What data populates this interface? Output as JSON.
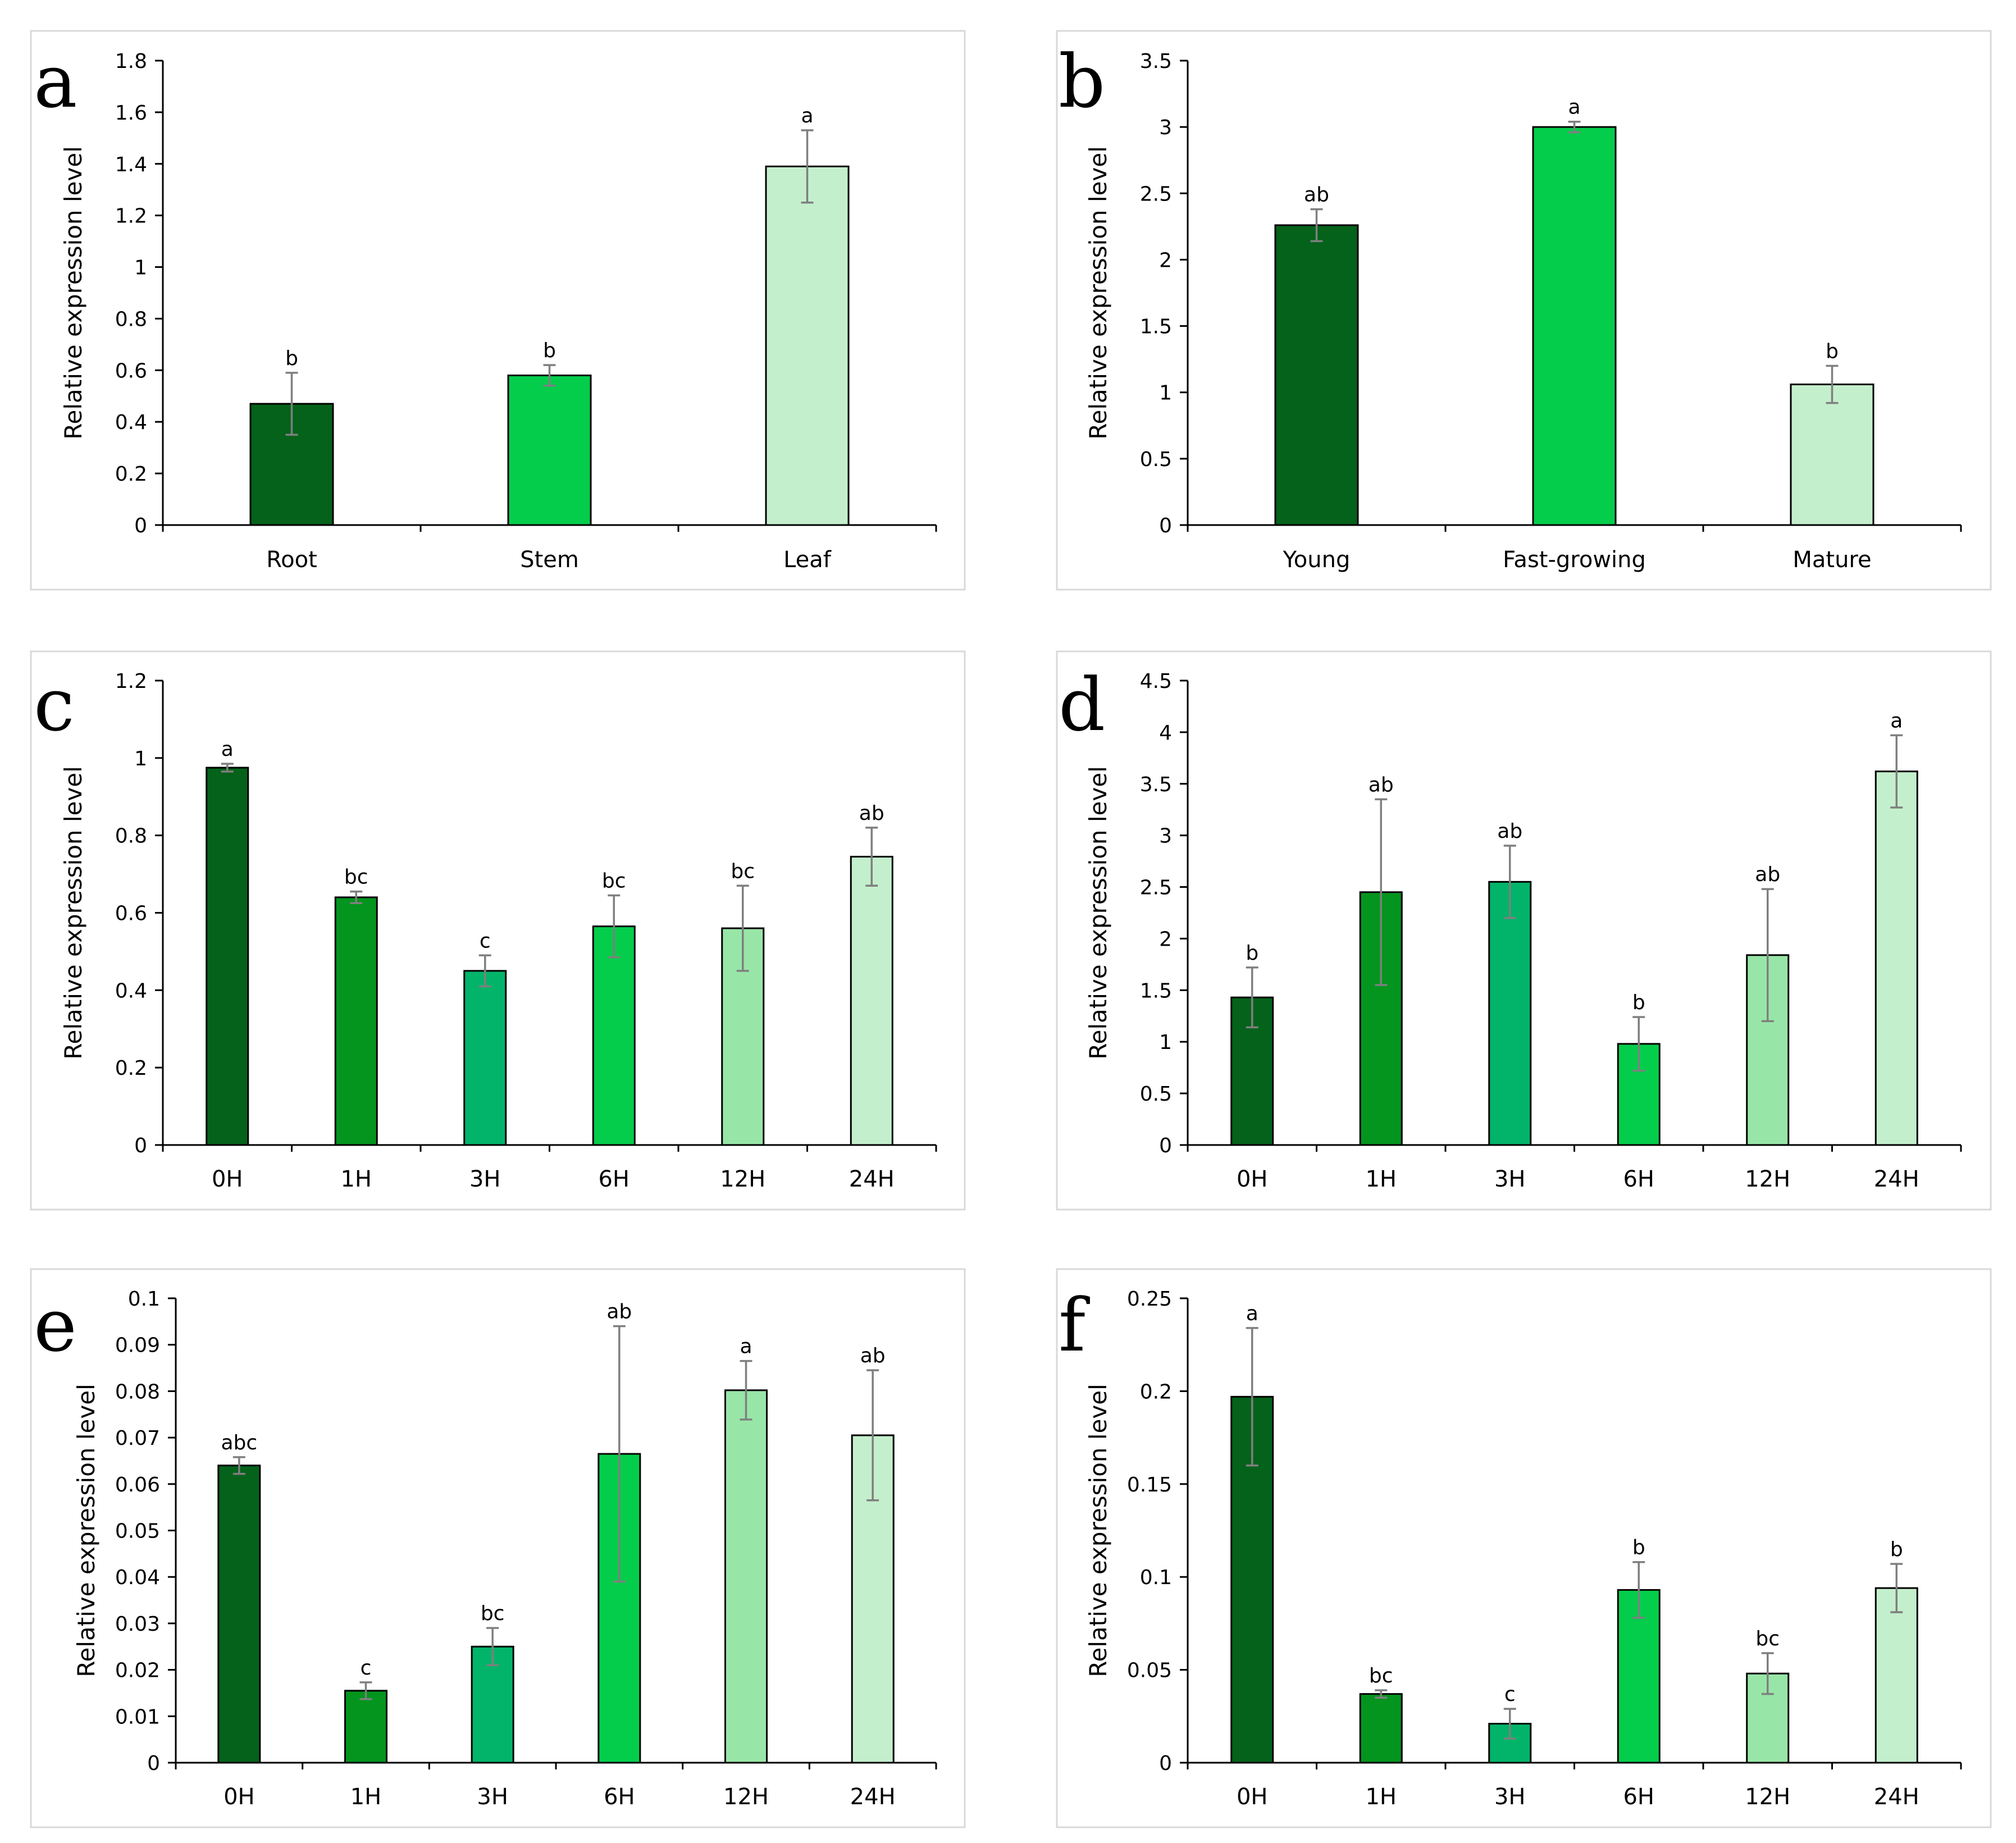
{
  "colors": {
    "dark_green": "#04621a",
    "medium_green": "#03951e",
    "teal_green": "#01b469",
    "bright_green": "#04cd4c",
    "light_green": "#98e6a7",
    "pale_green": "#c4efcc",
    "bar_outline": "#000000",
    "axis": "#000000",
    "error_bar": "#7f7f7f",
    "panel_border": "#d9d9d9"
  },
  "chart_data": [
    {
      "panel": "a",
      "type": "bar",
      "ylabel": "Relative expression level",
      "ylim": [
        0,
        1.8
      ],
      "yticks": [
        "0",
        "0.2",
        "0.4",
        "0.6",
        "0.8",
        "1",
        "1.2",
        "1.4",
        "1.6",
        "1.8"
      ],
      "categories": [
        "Root",
        "Stem",
        "Leaf"
      ],
      "values": [
        0.47,
        0.58,
        1.39
      ],
      "errors": [
        0.12,
        0.04,
        0.14
      ],
      "significance": [
        "b",
        "b",
        "a"
      ],
      "bar_colors": [
        "dark_green",
        "bright_green",
        "pale_green"
      ]
    },
    {
      "panel": "b",
      "type": "bar",
      "ylabel": "Relative expression level",
      "ylim": [
        0,
        3.5
      ],
      "yticks": [
        "0",
        "0.5",
        "1",
        "1.5",
        "2",
        "2.5",
        "3",
        "3.5"
      ],
      "categories": [
        "Young",
        "Fast-growing",
        "Mature"
      ],
      "values": [
        2.26,
        3.0,
        1.06
      ],
      "errors": [
        0.12,
        0.04,
        0.14
      ],
      "significance": [
        "ab",
        "a",
        "b"
      ],
      "bar_colors": [
        "dark_green",
        "bright_green",
        "pale_green"
      ]
    },
    {
      "panel": "c",
      "type": "bar",
      "ylabel": "Relative expression level",
      "ylim": [
        0,
        1.2
      ],
      "yticks": [
        "0",
        "0.2",
        "0.4",
        "0.6",
        "0.8",
        "1",
        "1.2"
      ],
      "categories": [
        "0H",
        "1H",
        "3H",
        "6H",
        "12H",
        "24H"
      ],
      "values": [
        0.975,
        0.64,
        0.45,
        0.565,
        0.56,
        0.745
      ],
      "errors": [
        0.01,
        0.015,
        0.04,
        0.08,
        0.11,
        0.075
      ],
      "significance": [
        "a",
        "bc",
        "c",
        "bc",
        "bc",
        "ab"
      ],
      "bar_colors": [
        "dark_green",
        "medium_green",
        "teal_green",
        "bright_green",
        "light_green",
        "pale_green"
      ]
    },
    {
      "panel": "d",
      "type": "bar",
      "ylabel": "Relative expression level",
      "ylim": [
        0,
        4.5
      ],
      "yticks": [
        "0",
        "0.5",
        "1",
        "1.5",
        "2",
        "2.5",
        "3",
        "3.5",
        "4",
        "4.5"
      ],
      "categories": [
        "0H",
        "1H",
        "3H",
        "6H",
        "12H",
        "24H"
      ],
      "values": [
        1.43,
        2.45,
        2.55,
        0.98,
        1.84,
        3.62
      ],
      "errors": [
        0.29,
        0.9,
        0.35,
        0.26,
        0.64,
        0.35
      ],
      "significance": [
        "b",
        "ab",
        "ab",
        "b",
        "ab",
        "a"
      ],
      "bar_colors": [
        "dark_green",
        "medium_green",
        "teal_green",
        "bright_green",
        "light_green",
        "pale_green"
      ]
    },
    {
      "panel": "e",
      "type": "bar",
      "ylabel": "Relative expression level",
      "ylim": [
        0,
        0.1
      ],
      "yticks": [
        "0",
        "0.01",
        "0.02",
        "0.03",
        "0.04",
        "0.05",
        "0.06",
        "0.07",
        "0.08",
        "0.09",
        "0.1"
      ],
      "categories": [
        "0H",
        "1H",
        "3H",
        "6H",
        "12H",
        "24H"
      ],
      "values": [
        0.064,
        0.0155,
        0.025,
        0.0665,
        0.0802,
        0.0705
      ],
      "errors": [
        0.0018,
        0.0018,
        0.004,
        0.0275,
        0.0063,
        0.014
      ],
      "significance": [
        "abc",
        "c",
        "bc",
        "ab",
        "a",
        "ab"
      ],
      "bar_colors": [
        "dark_green",
        "medium_green",
        "teal_green",
        "bright_green",
        "light_green",
        "pale_green"
      ]
    },
    {
      "panel": "f",
      "type": "bar",
      "ylabel": "Relative expression level",
      "ylim": [
        0,
        0.25
      ],
      "yticks": [
        "0",
        "0.05",
        "0.1",
        "0.15",
        "0.2",
        "0.25"
      ],
      "categories": [
        "0H",
        "1H",
        "3H",
        "6H",
        "12H",
        "24H"
      ],
      "values": [
        0.197,
        0.037,
        0.021,
        0.093,
        0.048,
        0.094
      ],
      "errors": [
        0.037,
        0.002,
        0.008,
        0.015,
        0.011,
        0.013
      ],
      "significance": [
        "a",
        "bc",
        "c",
        "b",
        "bc",
        "b"
      ],
      "bar_colors": [
        "dark_green",
        "medium_green",
        "teal_green",
        "bright_green",
        "light_green",
        "pale_green"
      ]
    }
  ]
}
